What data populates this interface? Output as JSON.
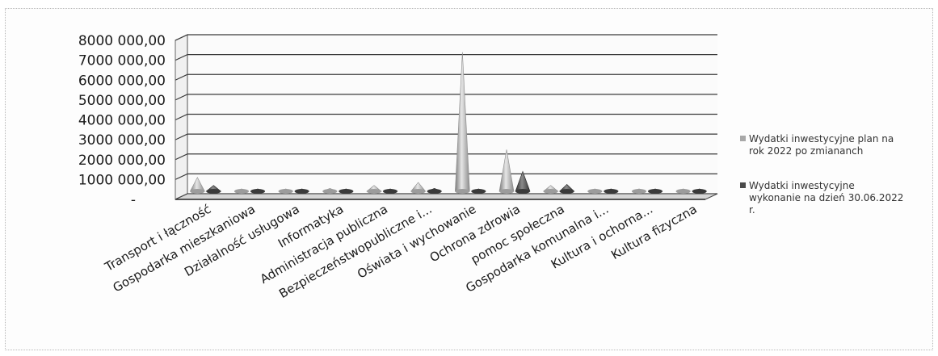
{
  "chart_data": {
    "type": "3d-cone-column",
    "categories": [
      "Transport i łączność",
      "Gospodarka mieszkaniowa",
      "Działalność usługowa",
      "Informatyka",
      "Administracja publiczna",
      "Bezpieczeństwopubliczne i...",
      "Oświata i wychowanie",
      "Ochrona zdrowia",
      "pomoc społeczna",
      "Gospodarka komunalna i...",
      "Kultura i ochorna...",
      "Kultura fizyczna"
    ],
    "series": [
      {
        "name_lines": [
          "Wydatki inwestycyjne plan na",
          "rok 2022 po zmiananch"
        ],
        "color": "#a8a8a8",
        "values": [
          700000,
          20000,
          15000,
          150000,
          300000,
          450000,
          7000000,
          2100000,
          300000,
          15000,
          15000,
          100000
        ]
      },
      {
        "name_lines": [
          "Wydatki inwestycyjne",
          "wykonanie  na dzień 30.06.2022",
          "r."
        ],
        "color": "#4a4a4a",
        "values": [
          300000,
          5000,
          5000,
          10000,
          20000,
          150000,
          40000,
          1000000,
          350000,
          5000,
          5000,
          5000
        ]
      }
    ],
    "yticks": [
      "8000 000,00",
      "7000 000,00",
      "6000 000,00",
      "5000 000,00",
      "4000 000,00",
      "3000 000,00",
      "2000 000,00",
      "1000 000,00",
      "-"
    ],
    "ylim": [
      0,
      8000000
    ],
    "grid": true,
    "legend": "right"
  }
}
